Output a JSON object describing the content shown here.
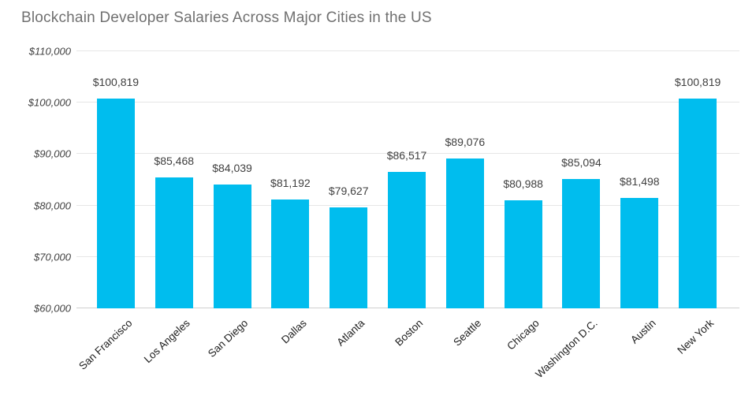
{
  "chart_data": {
    "type": "bar",
    "title": "Blockchain Developer Salaries Across Major Cities in the US",
    "categories": [
      "San Francisco",
      "Los Angeles",
      "San Diego",
      "Dallas",
      "Atlanta",
      "Boston",
      "Seattle",
      "Chicago",
      "Washington D.C.",
      "Austin",
      "New York"
    ],
    "values": [
      100819,
      85468,
      84039,
      81192,
      79627,
      86517,
      89076,
      80988,
      85094,
      81498,
      100819
    ],
    "value_labels": [
      "$100,819",
      "$85,468",
      "$84,039",
      "$81,192",
      "$79,627",
      "$86,517",
      "$89,076",
      "$80,988",
      "$85,094",
      "$81,498",
      "$100,819"
    ],
    "xlabel": "",
    "ylabel": "",
    "ylim": [
      60000,
      110000
    ],
    "y_ticks": [
      {
        "value": 60000,
        "label": "$60,000"
      },
      {
        "value": 70000,
        "label": "$70,000"
      },
      {
        "value": 80000,
        "label": "$80,000"
      },
      {
        "value": 90000,
        "label": "$90,000"
      },
      {
        "value": 100000,
        "label": "$100,000"
      },
      {
        "value": 110000,
        "label": "$110,000"
      }
    ],
    "grid": true,
    "legend_position": "none",
    "bar_color": "#00bdee",
    "title_color": "#707070",
    "value_label_color": "#404040",
    "axis_label_color": "#424242",
    "category_label_color": "#1f1f1f",
    "gridline_color": "#e6e6e6",
    "background_color": "#ffffff"
  }
}
